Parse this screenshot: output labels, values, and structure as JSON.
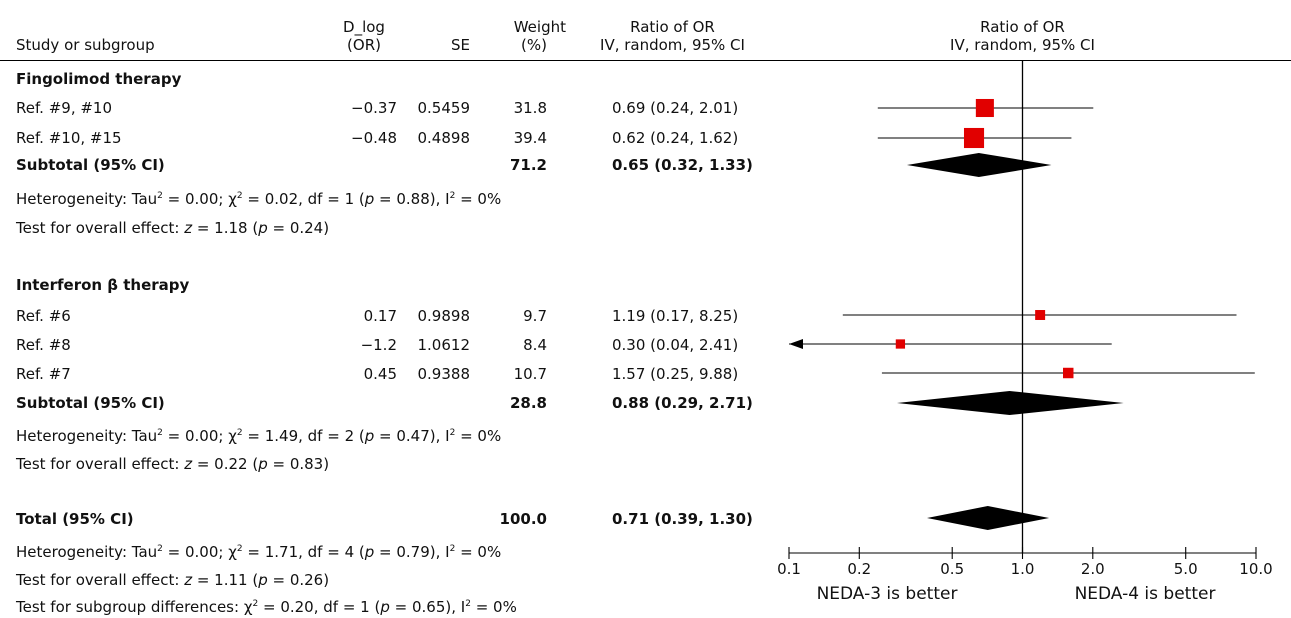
{
  "headers": {
    "study": "Study or subgroup",
    "dlog_1": "D_log",
    "dlog_2": "(OR)",
    "se": "SE",
    "weight_1": "Weight",
    "weight_2": "(%)",
    "ratio_1": "Ratio of OR",
    "ratio_2": "IV, random, 95% CI",
    "plot_1": "Ratio of OR",
    "plot_2": "IV, random, 95% CI"
  },
  "groups": [
    {
      "title": "Fingolimod therapy",
      "subtotal_label": "Subtotal (95% CI)",
      "subtotal_weight": "71.2",
      "subtotal_ci": "0.65 (0.32, 1.33)",
      "het_prefix": "Heterogeneity: Tau",
      "het_mid": " = 0.00; χ",
      "het_tail": " = 0.02, df = 1 (",
      "het_p": " = 0.88), I",
      "het_end": " = 0%",
      "test_prefix": "Test for overall effect: ",
      "test_mid": " = 1.18 (",
      "test_end": " = 0.24)"
    },
    {
      "title": "Interferon β therapy",
      "subtotal_label": "Subtotal (95% CI)",
      "subtotal_weight": "28.8",
      "subtotal_ci": "0.88 (0.29, 2.71)",
      "het_prefix": "Heterogeneity: Tau",
      "het_mid": " = 0.00; χ",
      "het_tail": " = 1.49, df = 2 (",
      "het_p": " = 0.47), I",
      "het_end": " = 0%",
      "test_prefix": "Test for overall effect: ",
      "test_mid": " = 0.22 (",
      "test_end": " = 0.83)"
    }
  ],
  "studies": [
    {
      "name": "Ref. #9, #10",
      "dlog": "−0.37",
      "se": "0.5459",
      "weight": "31.8",
      "ci": "0.69 (0.24, 2.01)"
    },
    {
      "name": "Ref. #10, #15",
      "dlog": "−0.48",
      "se": "0.4898",
      "weight": "39.4",
      "ci": "0.62 (0.24, 1.62)"
    },
    {
      "name": "Ref. #6",
      "dlog": "0.17",
      "se": "0.9898",
      "weight": "9.7",
      "ci": "1.19 (0.17, 8.25)"
    },
    {
      "name": "Ref. #8",
      "dlog": "−1.2",
      "se": "1.0612",
      "weight": "8.4",
      "ci": "0.30 (0.04, 2.41)"
    },
    {
      "name": "Ref. #7",
      "dlog": "0.45",
      "se": "0.9388",
      "weight": "10.7",
      "ci": "1.57 (0.25, 9.88)"
    }
  ],
  "total": {
    "label": "Total (95% CI)",
    "weight": "100.0",
    "ci": "0.71 (0.39, 1.30)",
    "het_prefix": "Heterogeneity: Tau",
    "het_mid": " = 0.00; χ",
    "het_tail": " = 1.71, df = 4 (",
    "het_p": " = 0.79), I",
    "het_end": " = 0%",
    "test_prefix": "Test for overall effect: ",
    "test_mid": " = 1.11 (",
    "test_end": " = 0.26)",
    "sub_prefix": "Test for subgroup differences: χ",
    "sub_mid": " = 0.20, df = 1 (",
    "sub_p": " = 0.65), I",
    "sub_end": " = 0%"
  },
  "symbols": {
    "sq": "2",
    "z": "z",
    "p": "p"
  },
  "colors": {
    "marker": "#e10000",
    "diamond": "#000000"
  },
  "chart_data": {
    "type": "forest",
    "scale": "log",
    "xlim": [
      0.1,
      10.0
    ],
    "reference_line": 1.0,
    "xticks": [
      "0.1",
      "0.2",
      "0.5",
      "1.0",
      "2.0",
      "5.0",
      "10.0"
    ],
    "left_label": "NEDA-3 is better",
    "right_label": "NEDA-4 is better",
    "studies": [
      {
        "name": "Ref. #9, #10",
        "or": 0.69,
        "lo": 0.24,
        "hi": 2.01,
        "weight": 31.8
      },
      {
        "name": "Ref. #10, #15",
        "or": 0.62,
        "lo": 0.24,
        "hi": 1.62,
        "weight": 39.4
      },
      {
        "name": "Ref. #6",
        "or": 1.19,
        "lo": 0.17,
        "hi": 8.25,
        "weight": 9.7
      },
      {
        "name": "Ref. #8",
        "or": 0.3,
        "lo": 0.04,
        "hi": 2.41,
        "weight": 8.4
      },
      {
        "name": "Ref. #7",
        "or": 1.57,
        "lo": 0.25,
        "hi": 9.88,
        "weight": 10.7
      }
    ],
    "diamonds": [
      {
        "name": "Fingolimod subtotal",
        "or": 0.65,
        "lo": 0.32,
        "hi": 1.33
      },
      {
        "name": "Interferon subtotal",
        "or": 0.88,
        "lo": 0.29,
        "hi": 2.71
      },
      {
        "name": "Total",
        "or": 0.71,
        "lo": 0.39,
        "hi": 1.3
      }
    ]
  }
}
